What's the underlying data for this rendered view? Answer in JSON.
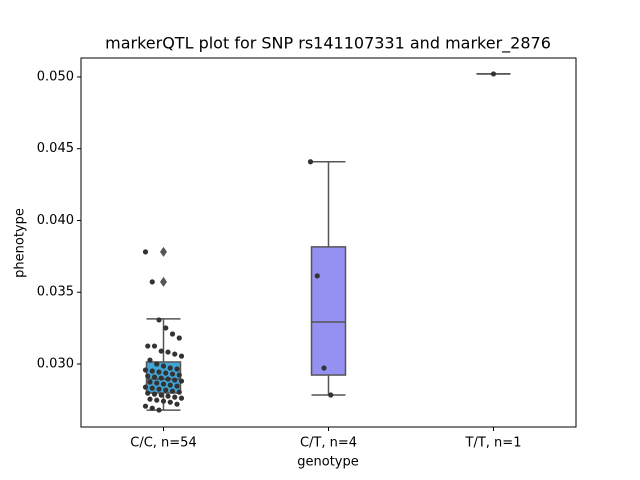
{
  "chart_data": {
    "type": "box",
    "title": "markerQTL plot for SNP rs141107331 and marker_2876",
    "x_label": "genotype",
    "y_label": "phenotype",
    "categories": [
      "C/C, n=54",
      "C/T, n=4",
      "T/T, n=1"
    ],
    "ylim": [
      0.02561,
      0.05132
    ],
    "yticks": [
      {
        "value": 0.03,
        "label": "0.030"
      },
      {
        "value": 0.035,
        "label": "0.035"
      },
      {
        "value": 0.04,
        "label": "0.040"
      },
      {
        "value": 0.045,
        "label": "0.045"
      },
      {
        "value": 0.05,
        "label": "0.050"
      }
    ],
    "boxes": [
      {
        "whislo": 0.02679,
        "q1": 0.02798,
        "med": 0.02895,
        "q3": 0.03014,
        "whishi": 0.03314,
        "fliers": [
          0.03572,
          0.03781
        ],
        "color": "#42a5d8"
      },
      {
        "whislo": 0.02784,
        "q1": 0.02923,
        "med": 0.03293,
        "q3": 0.03816,
        "whishi": 0.04409,
        "fliers": [],
        "color": "#9491f2"
      },
      {
        "whislo": 0.05021,
        "q1": 0.05021,
        "med": 0.05021,
        "q3": 0.05021,
        "whishi": 0.05021,
        "fliers": [],
        "color": "#f07fa0"
      }
    ],
    "points": [
      [
        0.03781,
        0.03572,
        0.03307,
        0.03251,
        0.03209,
        0.03181,
        0.03125,
        0.03125,
        0.0309,
        0.03083,
        0.03069,
        0.03055,
        0.03027,
        0.03,
        0.02986,
        0.02972,
        0.02965,
        0.02958,
        0.02951,
        0.02944,
        0.02937,
        0.0293,
        0.02923,
        0.02916,
        0.02909,
        0.02902,
        0.02895,
        0.02888,
        0.02881,
        0.02874,
        0.02867,
        0.0286,
        0.02853,
        0.02846,
        0.02839,
        0.02832,
        0.02825,
        0.02818,
        0.02811,
        0.02804,
        0.02797,
        0.0279,
        0.02783,
        0.02776,
        0.02769,
        0.02762,
        0.02755,
        0.02748,
        0.02741,
        0.02734,
        0.0272,
        0.02706,
        0.02692,
        0.02679
      ],
      [
        0.04409,
        0.03614,
        0.02972,
        0.02784
      ],
      [
        0.05021
      ]
    ],
    "point_color": "#333333"
  }
}
